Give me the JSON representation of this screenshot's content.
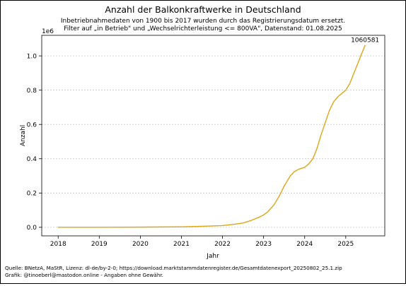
{
  "chart_data": {
    "type": "line",
    "title": "Anzahl der Balkonkraftwerke in Deutschland",
    "subtitle": [
      "Inbetriebnahmedaten von 1900 bis 2017 wurden durch das Registrierungsdatum ersetzt.",
      "Filter auf „in Betrieb\" und „Wechselrichterleistung <= 800VA\", Datenstand: 01.08.2025"
    ],
    "xlabel": "Jahr",
    "ylabel": "Anzahl",
    "y_exponent_label": "1e6",
    "x_ticks": [
      "2018",
      "2019",
      "2020",
      "2021",
      "2022",
      "2023",
      "2024",
      "2025"
    ],
    "y_ticks": [
      "0.0",
      "0.2",
      "0.4",
      "0.6",
      "0.8",
      "1.0"
    ],
    "xlim": [
      2017.6,
      2025.95
    ],
    "ylim": [
      -0.05,
      1.12
    ],
    "grid": "horizontal",
    "annotation": "1060581",
    "series": [
      {
        "color": "#dba618",
        "points": [
          [
            2018.0,
            0.0
          ],
          [
            2019.0,
            0.0
          ],
          [
            2020.0,
            0.001
          ],
          [
            2020.5,
            0.002
          ],
          [
            2021.0,
            0.003
          ],
          [
            2021.5,
            0.006
          ],
          [
            2022.0,
            0.01
          ],
          [
            2022.2,
            0.015
          ],
          [
            2022.5,
            0.025
          ],
          [
            2022.7,
            0.04
          ],
          [
            2022.9,
            0.06
          ],
          [
            2023.0,
            0.072
          ],
          [
            2023.1,
            0.09
          ],
          [
            2023.25,
            0.13
          ],
          [
            2023.4,
            0.19
          ],
          [
            2023.5,
            0.24
          ],
          [
            2023.65,
            0.3
          ],
          [
            2023.75,
            0.325
          ],
          [
            2023.85,
            0.338
          ],
          [
            2024.0,
            0.35
          ],
          [
            2024.1,
            0.37
          ],
          [
            2024.2,
            0.4
          ],
          [
            2024.3,
            0.46
          ],
          [
            2024.4,
            0.54
          ],
          [
            2024.5,
            0.61
          ],
          [
            2024.6,
            0.68
          ],
          [
            2024.7,
            0.73
          ],
          [
            2024.8,
            0.76
          ],
          [
            2024.9,
            0.78
          ],
          [
            2025.0,
            0.8
          ],
          [
            2025.1,
            0.84
          ],
          [
            2025.2,
            0.9
          ],
          [
            2025.3,
            0.96
          ],
          [
            2025.4,
            1.02
          ],
          [
            2025.45,
            1.05
          ],
          [
            2025.47,
            1.060581
          ]
        ]
      }
    ]
  },
  "footer": [
    "Quelle: BNetzA, MaStR, Lizenz: dl-de/by-2-0; https://download.marktstammdatenregister.de/Gesamtdatenexport_20250802_25.1.zip",
    "Grafik: @tinoeberl@mastodon.online - Angaben ohne Gewähr."
  ]
}
